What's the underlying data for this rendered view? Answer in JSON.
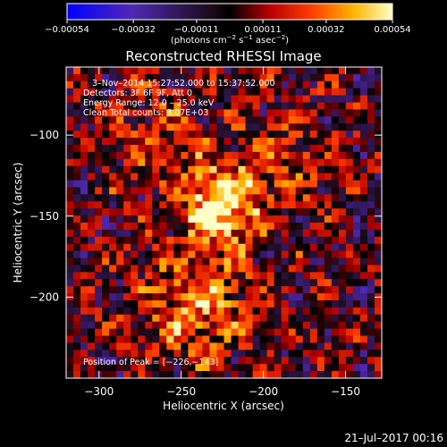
{
  "chart_data": {
    "type": "heatmap",
    "title": "Reconstructed RHESSI Image",
    "xlabel": "Heliocentric X (arcsec)",
    "ylabel": "Heliocentric Y (arcsec)",
    "xlim": [
      -320,
      -128
    ],
    "ylim": [
      -250,
      -58
    ],
    "xticks": [
      -300,
      -250,
      -200,
      -150
    ],
    "xtick_labels": [
      "−300",
      "−250",
      "−200",
      "−150"
    ],
    "yticks": [
      -100,
      -150,
      -200
    ],
    "ytick_labels": [
      "−100",
      "−150",
      "−200"
    ],
    "colorbar": {
      "min": -0.00054,
      "max": 0.00054,
      "ticks": [
        -0.00054,
        -0.00032,
        -0.00011,
        0.00011,
        0.00032,
        0.00054
      ],
      "tick_labels": [
        "−0.00054",
        "−0.00032",
        "−0.00011",
        "0.00011",
        "0.00032",
        "0.00054"
      ],
      "unit_prefix": "(photons cm",
      "unit_exp1": "−2",
      "unit_mid": " s",
      "unit_exp2": "−1",
      "unit_mid2": " asec",
      "unit_exp3": "−2",
      "unit_suffix": ")",
      "colors": [
        "#0000ff",
        "#5028b4",
        "#6e3c82",
        "#000000",
        "#b40000",
        "#ff3c00",
        "#ffb400",
        "#ffffb4"
      ]
    },
    "annotations": {
      "time_range": "3–Nov–2014 15:27:52.000 to 15:37:52.000",
      "detectors": "Detectors: 3F 6F 9F, Att 0",
      "energy": "Energy Range: 12.0 – 25.0 keV",
      "clean": "Clean    Total counts: 8.07E+03",
      "peak": "Position of Peak = [−226,−143]"
    },
    "peak": {
      "x": -226,
      "y": -143
    },
    "grid": false
  },
  "footer": {
    "date": "21–Jul–2017 00:16"
  }
}
